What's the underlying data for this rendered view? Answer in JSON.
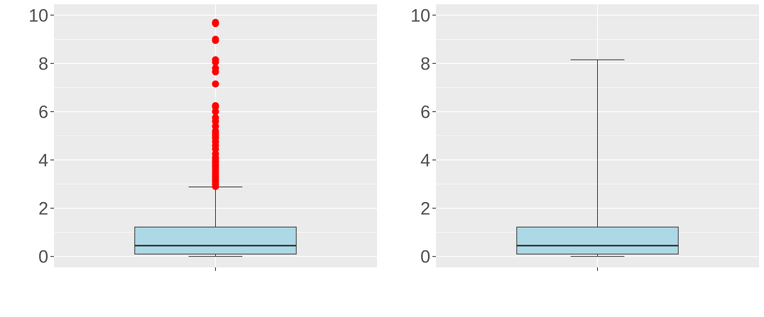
{
  "chart_data": [
    {
      "type": "box",
      "panel": "left",
      "ylim": [
        -0.45,
        10.45
      ],
      "yticks": [
        "0",
        "2",
        "4",
        "6",
        "8",
        "10"
      ],
      "grid": true,
      "box": {
        "whisker_low": 0.0,
        "q1": 0.1,
        "median": 0.45,
        "q3": 1.22,
        "whisker_high": 2.88
      },
      "outliers": [
        2.9,
        3.0,
        3.1,
        3.2,
        3.3,
        3.4,
        3.5,
        3.6,
        3.7,
        3.8,
        3.9,
        4.0,
        4.1,
        4.25,
        4.45,
        4.6,
        4.75,
        4.9,
        5.0,
        5.1,
        5.2,
        5.4,
        5.6,
        5.75,
        6.0,
        6.2,
        6.25,
        7.15,
        7.65,
        7.8,
        8.05,
        8.15,
        8.95,
        9.0,
        9.65,
        9.7
      ],
      "colors": {
        "box_fill": "#add8e6",
        "outlier": "#ff0000",
        "panel_bg": "#ebebeb",
        "grid": "#ffffff",
        "line": "#333333"
      }
    },
    {
      "type": "box",
      "panel": "right",
      "ylim": [
        -0.45,
        10.45
      ],
      "yticks": [
        "0",
        "2",
        "4",
        "6",
        "8",
        "10"
      ],
      "grid": true,
      "box": {
        "whisker_low": 0.0,
        "q1": 0.1,
        "median": 0.45,
        "q3": 1.22,
        "whisker_high": 8.15
      },
      "outliers": [],
      "colors": {
        "box_fill": "#add8e6",
        "outlier": "#ff0000",
        "panel_bg": "#ebebeb",
        "grid": "#ffffff",
        "line": "#333333"
      }
    }
  ]
}
